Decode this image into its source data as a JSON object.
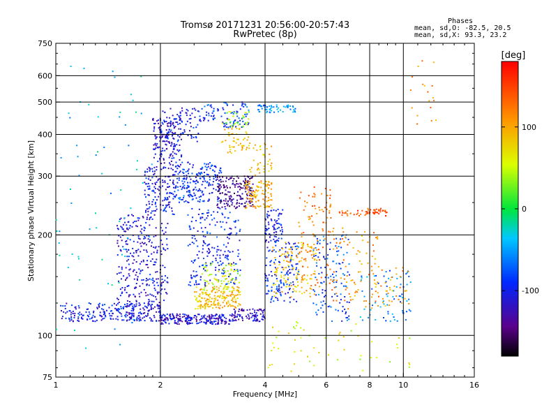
{
  "chart_data": {
    "type": "scatter",
    "title": "Tromsø 20171231 20:56:00-20:57:43",
    "subtitle": "RwPretec (8p)",
    "xlabel": "Frequency [MHz]",
    "ylabel": "Stationary phase Virtual Height [km]",
    "x_scale": "log",
    "y_scale": "log",
    "xlim": [
      1,
      16
    ],
    "ylim": [
      75,
      750
    ],
    "x_ticks": [
      1,
      2,
      4,
      6,
      8,
      10,
      16
    ],
    "x_tick_labels": [
      "1",
      "2",
      "4",
      "6",
      "8",
      "10",
      "16"
    ],
    "y_ticks": [
      75,
      100,
      200,
      300,
      400,
      500,
      600,
      750
    ],
    "y_tick_labels": [
      "75",
      "100",
      "200",
      "300",
      "400",
      "500",
      "600",
      "750"
    ],
    "grid": true,
    "phase_stats": {
      "heading": "Phases",
      "o_line": "mean, sd,O:  -82.5, 20.5",
      "x_line": "mean, sd,X:  93.3, 23.2"
    },
    "colorbar": {
      "label": "[deg]",
      "range": [
        -180,
        180
      ],
      "ticks": [
        100,
        0,
        -100
      ],
      "tick_labels": [
        "100",
        "0",
        "-100"
      ]
    },
    "clusters": [
      {
        "f": [
          1.02,
          1.6
        ],
        "h": [
          110,
          125
        ],
        "phase": -100,
        "n": 140
      },
      {
        "f": [
          1.6,
          2.0
        ],
        "h": [
          110,
          125
        ],
        "phase": -110,
        "n": 120
      },
      {
        "f": [
          2.0,
          3.2
        ],
        "h": [
          108,
          116
        ],
        "phase": -115,
        "n": 220
      },
      {
        "f": [
          3.2,
          4.0
        ],
        "h": [
          110,
          120
        ],
        "phase": -120,
        "n": 90
      },
      {
        "f": [
          1.5,
          2.1
        ],
        "h": [
          125,
          230
        ],
        "phase": -110,
        "n": 300
      },
      {
        "f": [
          1.8,
          2.2
        ],
        "h": [
          230,
          320
        ],
        "phase": -105,
        "n": 150
      },
      {
        "f": [
          1.9,
          2.3
        ],
        "h": [
          320,
          450
        ],
        "phase": -115,
        "n": 160
      },
      {
        "f": [
          2.0,
          2.6
        ],
        "h": [
          380,
          480
        ],
        "phase": -100,
        "n": 90
      },
      {
        "f": [
          2.2,
          3.0
        ],
        "h": [
          250,
          330
        ],
        "phase": -90,
        "n": 220
      },
      {
        "f": [
          2.4,
          3.4
        ],
        "h": [
          140,
          240
        ],
        "phase": -95,
        "n": 220
      },
      {
        "f": [
          2.6,
          3.6
        ],
        "h": [
          420,
          500
        ],
        "phase": -85,
        "n": 90
      },
      {
        "f": [
          2.5,
          3.4
        ],
        "h": [
          120,
          140
        ],
        "phase": 90,
        "n": 180
      },
      {
        "f": [
          2.6,
          3.4
        ],
        "h": [
          135,
          165
        ],
        "phase": 50,
        "n": 80
      },
      {
        "f": [
          2.9,
          3.7
        ],
        "h": [
          240,
          300
        ],
        "phase": -140,
        "n": 180
      },
      {
        "f": [
          3.0,
          3.6
        ],
        "h": [
          350,
          420
        ],
        "phase": 90,
        "n": 50
      },
      {
        "f": [
          3.0,
          3.6
        ],
        "h": [
          420,
          470
        ],
        "phase": 40,
        "n": 35
      },
      {
        "f": [
          3.5,
          4.2
        ],
        "h": [
          240,
          290
        ],
        "phase": 100,
        "n": 110
      },
      {
        "f": [
          3.6,
          4.2
        ],
        "h": [
          300,
          380
        ],
        "phase": 90,
        "n": 40
      },
      {
        "f": [
          3.8,
          4.9
        ],
        "h": [
          465,
          490
        ],
        "phase": -55,
        "n": 60
      },
      {
        "f": [
          4.0,
          4.5
        ],
        "h": [
          190,
          240
        ],
        "phase": -100,
        "n": 80
      },
      {
        "f": [
          4.0,
          5.0
        ],
        "h": [
          125,
          190
        ],
        "phase": -90,
        "n": 140
      },
      {
        "f": [
          4.2,
          5.6
        ],
        "h": [
          130,
          190
        ],
        "phase": 90,
        "n": 130
      },
      {
        "f": [
          5.0,
          6.2
        ],
        "h": [
          140,
          280
        ],
        "phase": 120,
        "n": 100
      },
      {
        "f": [
          5.5,
          7.0
        ],
        "h": [
          110,
          200
        ],
        "phase": -80,
        "n": 120
      },
      {
        "f": [
          6.5,
          9.0
        ],
        "h": [
          228,
          240
        ],
        "phase": 140,
        "n": 60
      },
      {
        "f": [
          6.2,
          8.5
        ],
        "h": [
          120,
          210
        ],
        "phase": 110,
        "n": 90
      },
      {
        "f": [
          7.5,
          10.5
        ],
        "h": [
          110,
          160
        ],
        "phase": -60,
        "n": 70
      },
      {
        "f": [
          8.0,
          10.5
        ],
        "h": [
          120,
          160
        ],
        "phase": 100,
        "n": 40
      },
      {
        "f": [
          1.0,
          1.9
        ],
        "h": [
          90,
          650
        ],
        "phase": -40,
        "n": 70
      },
      {
        "f": [
          4.0,
          10.5
        ],
        "h": [
          78,
          110
        ],
        "phase": 60,
        "n": 55
      },
      {
        "f": [
          10.5,
          12.5
        ],
        "h": [
          400,
          680
        ],
        "phase": 110,
        "n": 18
      }
    ]
  }
}
